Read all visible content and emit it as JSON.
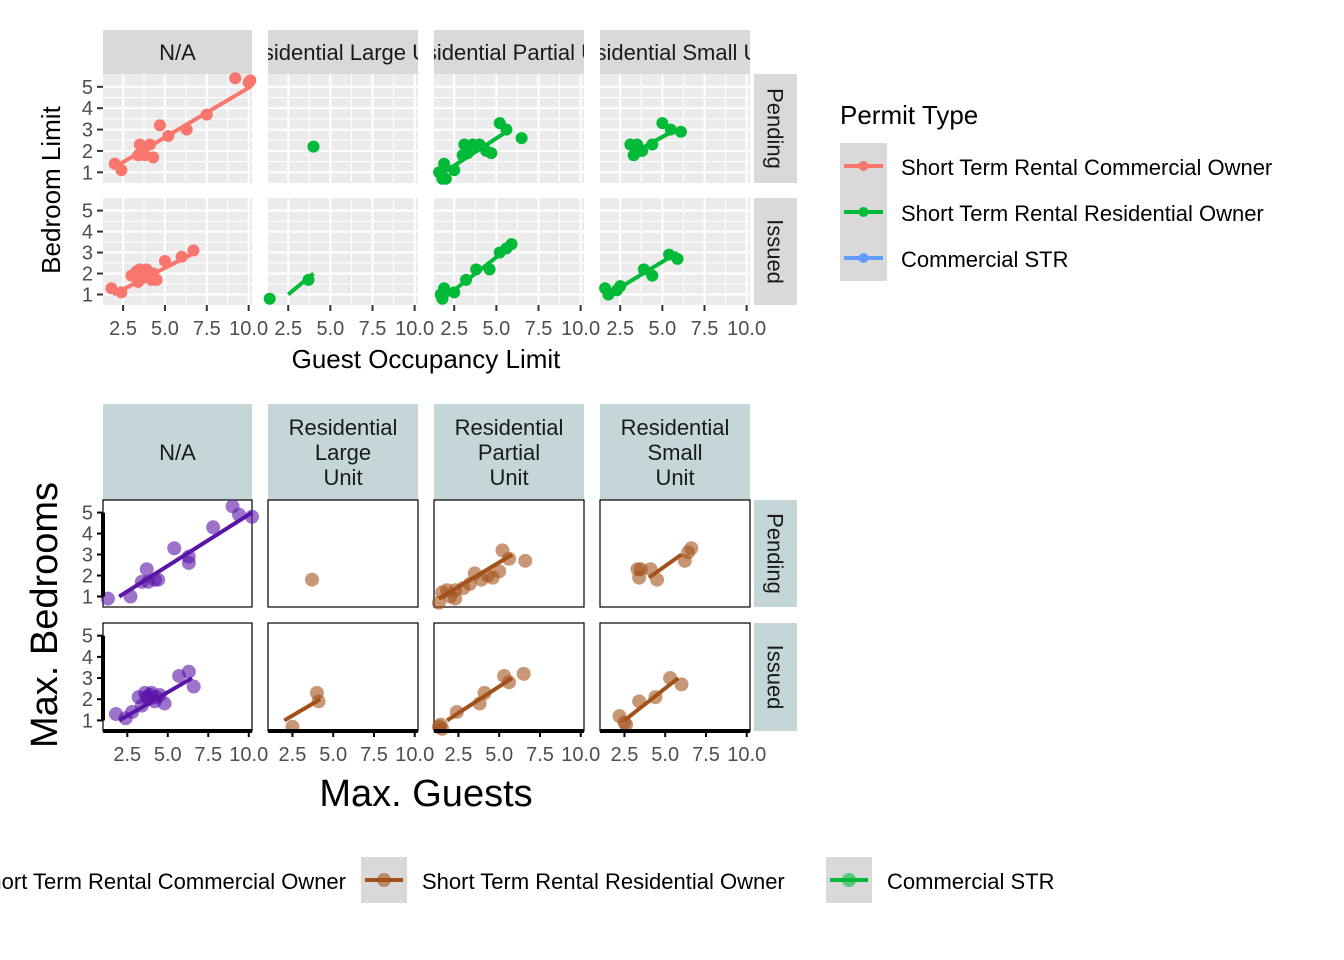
{
  "colors": {
    "commercial_owner": "#F8766D",
    "residential_owner": "#00BA38",
    "commercial_str": "#619CFF",
    "purple": "#5A14A8",
    "brown": "#A3511B",
    "strip_gray": "#D9D9D9",
    "strip_blue": "#C5D6D8",
    "panel_gray": "#EBEBEB"
  },
  "chart_data": [
    {
      "type": "scatter",
      "id": "top",
      "xlabel": "Guest Occupancy Limit",
      "ylabel": "Bedroom Limit",
      "xlim": [
        1.3,
        10.2
      ],
      "ylim": [
        0.5,
        5.6
      ],
      "x_ticks": [
        2.5,
        5.0,
        7.5,
        10.0
      ],
      "x_tick_labels": [
        "2.5",
        "5.0",
        "7.5",
        "10.0"
      ],
      "y_ticks": [
        1,
        2,
        3,
        4,
        5
      ],
      "y_tick_labels": [
        "1",
        "2",
        "3",
        "4",
        "5"
      ],
      "col_facets": [
        "N/A",
        "Residential Large Unit",
        "Residential Partial Unit",
        "Residential Small Unit"
      ],
      "row_facets": [
        "Pending",
        "Issued"
      ],
      "legend": {
        "title": "Permit Type",
        "entries": [
          "Short Term Rental Commercial Owner",
          "Short Term Rental Residential Owner",
          "Commercial STR"
        ]
      },
      "panels": [
        {
          "col": 0,
          "row": 0,
          "color_key": "commercial_owner",
          "points": [
            [
              2.0,
              1.4
            ],
            [
              2.4,
              1.1
            ],
            [
              3.4,
              1.8
            ],
            [
              3.5,
              2.3
            ],
            [
              3.8,
              1.8
            ],
            [
              4.1,
              2.3
            ],
            [
              4.3,
              1.7
            ],
            [
              4.7,
              3.2
            ],
            [
              5.2,
              2.7
            ],
            [
              6.3,
              3.0
            ],
            [
              7.5,
              3.7
            ],
            [
              9.2,
              5.4
            ],
            [
              10.0,
              5.2
            ],
            [
              10.1,
              5.3
            ]
          ],
          "fit": [
            [
              1.9,
              1.2
            ],
            [
              10.1,
              5.0
            ]
          ]
        },
        {
          "col": 1,
          "row": 0,
          "color_key": "residential_owner",
          "points": [
            [
              4.0,
              2.2
            ]
          ],
          "fit": []
        },
        {
          "col": 2,
          "row": 0,
          "color_key": "residential_owner",
          "points": [
            [
              1.6,
              1.0
            ],
            [
              1.8,
              0.7
            ],
            [
              1.9,
              1.4
            ],
            [
              2.0,
              0.7
            ],
            [
              2.5,
              1.1
            ],
            [
              3.0,
              1.8
            ],
            [
              3.1,
              2.3
            ],
            [
              3.3,
              1.9
            ],
            [
              3.6,
              2.3
            ],
            [
              4.0,
              2.3
            ],
            [
              4.4,
              2.0
            ],
            [
              4.7,
              1.9
            ],
            [
              5.2,
              3.3
            ],
            [
              5.6,
              3.0
            ],
            [
              6.5,
              2.6
            ]
          ],
          "fit": [
            [
              1.5,
              0.8
            ],
            [
              5.8,
              3.0
            ]
          ]
        },
        {
          "col": 3,
          "row": 0,
          "color_key": "residential_owner",
          "points": [
            [
              3.1,
              2.3
            ],
            [
              3.3,
              1.8
            ],
            [
              3.5,
              2.3
            ],
            [
              3.8,
              2.0
            ],
            [
              4.4,
              2.3
            ],
            [
              5.0,
              3.3
            ],
            [
              5.5,
              3.0
            ],
            [
              6.1,
              2.9
            ]
          ],
          "fit": [
            [
              3.0,
              1.8
            ],
            [
              5.8,
              3.0
            ]
          ]
        },
        {
          "col": 0,
          "row": 1,
          "color_key": "commercial_owner",
          "points": [
            [
              1.8,
              1.3
            ],
            [
              2.4,
              1.1
            ],
            [
              3.0,
              1.9
            ],
            [
              3.3,
              2.1
            ],
            [
              3.4,
              1.6
            ],
            [
              3.5,
              2.2
            ],
            [
              3.6,
              2.0
            ],
            [
              3.7,
              1.8
            ],
            [
              3.8,
              2.1
            ],
            [
              3.9,
              2.2
            ],
            [
              4.1,
              1.9
            ],
            [
              4.2,
              1.7
            ],
            [
              4.3,
              2.0
            ],
            [
              4.5,
              1.7
            ],
            [
              5.0,
              2.6
            ],
            [
              6.0,
              2.8
            ],
            [
              6.7,
              3.1
            ]
          ],
          "fit": [
            [
              1.9,
              1.0
            ],
            [
              6.8,
              3.0
            ]
          ]
        },
        {
          "col": 1,
          "row": 1,
          "color_key": "residential_owner",
          "points": [
            [
              1.4,
              0.8
            ],
            [
              3.7,
              1.7
            ]
          ],
          "fit": [
            [
              2.5,
              1.0
            ],
            [
              4.0,
              2.0
            ]
          ]
        },
        {
          "col": 2,
          "row": 1,
          "color_key": "residential_owner",
          "points": [
            [
              1.7,
              1.0
            ],
            [
              1.8,
              0.8
            ],
            [
              1.9,
              1.3
            ],
            [
              2.5,
              1.1
            ],
            [
              3.2,
              1.7
            ],
            [
              3.8,
              2.2
            ],
            [
              4.6,
              2.2
            ],
            [
              5.2,
              3.0
            ],
            [
              5.6,
              3.2
            ],
            [
              5.9,
              3.4
            ]
          ],
          "fit": [
            [
              2.0,
              0.9
            ],
            [
              6.0,
              3.4
            ]
          ]
        },
        {
          "col": 3,
          "row": 1,
          "color_key": "residential_owner",
          "points": [
            [
              1.6,
              1.3
            ],
            [
              1.8,
              1.0
            ],
            [
              2.3,
              1.2
            ],
            [
              2.5,
              1.4
            ],
            [
              3.9,
              2.2
            ],
            [
              4.4,
              1.9
            ],
            [
              5.4,
              2.9
            ],
            [
              5.9,
              2.7
            ]
          ],
          "fit": [
            [
              1.6,
              0.9
            ],
            [
              5.9,
              3.0
            ]
          ]
        }
      ]
    },
    {
      "type": "scatter",
      "id": "bottom",
      "xlabel": "Max. Guests",
      "ylabel": "Max. Bedrooms",
      "xlim": [
        1.0,
        10.2
      ],
      "ylim": [
        0.5,
        5.6
      ],
      "x_ticks": [
        2.5,
        5.0,
        7.5,
        10.0
      ],
      "x_tick_labels": [
        "2.5",
        "5.0",
        "7.5",
        "10.0"
      ],
      "y_ticks": [
        1,
        2,
        3,
        4,
        5
      ],
      "y_tick_labels": [
        "1",
        "2",
        "3",
        "4",
        "5"
      ],
      "col_facets": [
        "N/A",
        "Residential\nLarge\nUnit",
        "Residential\nPartial\nUnit",
        "Residential\nSmall\nUnit"
      ],
      "row_facets": [
        "Pending",
        "Issued"
      ],
      "legend": {
        "entries": [
          "Short Term Rental Commercial Owner",
          "Short Term Rental Residential Owner",
          "Commercial STR"
        ]
      },
      "panels": [
        {
          "col": 0,
          "row": 0,
          "color_key": "purple",
          "points": [
            [
              1.3,
              0.9
            ],
            [
              2.7,
              1.0
            ],
            [
              3.4,
              1.7
            ],
            [
              3.7,
              2.3
            ],
            [
              3.8,
              1.7
            ],
            [
              4.2,
              1.8
            ],
            [
              4.4,
              1.8
            ],
            [
              5.4,
              3.3
            ],
            [
              6.3,
              2.6
            ],
            [
              6.3,
              2.9
            ],
            [
              7.8,
              4.3
            ],
            [
              9.0,
              5.3
            ],
            [
              9.4,
              4.9
            ],
            [
              10.2,
              4.8
            ]
          ],
          "fit": [
            [
              2.0,
              1.0
            ],
            [
              10.2,
              5.0
            ]
          ]
        },
        {
          "col": 1,
          "row": 0,
          "color_key": "brown",
          "points": [
            [
              3.7,
              1.8
            ]
          ],
          "fit": []
        },
        {
          "col": 2,
          "row": 0,
          "color_key": "brown",
          "points": [
            [
              1.3,
              0.7
            ],
            [
              1.5,
              1.2
            ],
            [
              1.8,
              1.3
            ],
            [
              2.0,
              1.0
            ],
            [
              2.3,
              1.3
            ],
            [
              2.3,
              0.9
            ],
            [
              2.8,
              1.4
            ],
            [
              3.2,
              1.6
            ],
            [
              3.5,
              2.1
            ],
            [
              3.9,
              1.8
            ],
            [
              4.3,
              2.0
            ],
            [
              4.6,
              1.9
            ],
            [
              5.0,
              2.2
            ],
            [
              5.2,
              3.2
            ],
            [
              5.6,
              2.8
            ],
            [
              6.6,
              2.7
            ]
          ],
          "fit": [
            [
              1.3,
              0.9
            ],
            [
              5.8,
              3.0
            ]
          ]
        },
        {
          "col": 3,
          "row": 0,
          "color_key": "brown",
          "points": [
            [
              3.3,
              2.3
            ],
            [
              3.4,
              1.9
            ],
            [
              3.5,
              2.3
            ],
            [
              4.1,
              2.3
            ],
            [
              4.5,
              1.8
            ],
            [
              6.2,
              2.7
            ],
            [
              6.4,
              3.1
            ],
            [
              6.6,
              3.3
            ]
          ],
          "fit": [
            [
              4.0,
              1.9
            ],
            [
              6.0,
              3.0
            ]
          ]
        },
        {
          "col": 0,
          "row": 1,
          "color_key": "purple",
          "points": [
            [
              1.8,
              1.3
            ],
            [
              2.4,
              1.1
            ],
            [
              2.8,
              1.4
            ],
            [
              3.2,
              2.1
            ],
            [
              3.4,
              1.7
            ],
            [
              3.6,
              2.3
            ],
            [
              3.7,
              2.1
            ],
            [
              3.8,
              2.0
            ],
            [
              3.9,
              2.2
            ],
            [
              4.0,
              2.3
            ],
            [
              4.2,
              1.9
            ],
            [
              4.3,
              2.1
            ],
            [
              4.5,
              2.2
            ],
            [
              4.8,
              1.8
            ],
            [
              5.7,
              3.1
            ],
            [
              6.3,
              3.3
            ],
            [
              6.6,
              2.6
            ]
          ],
          "fit": [
            [
              2.0,
              1.0
            ],
            [
              6.5,
              3.0
            ]
          ]
        },
        {
          "col": 1,
          "row": 1,
          "color_key": "brown",
          "points": [
            [
              2.5,
              0.7
            ],
            [
              4.0,
              2.3
            ],
            [
              4.1,
              1.9
            ]
          ],
          "fit": [
            [
              2.0,
              1.0
            ],
            [
              4.2,
              2.0
            ]
          ]
        },
        {
          "col": 2,
          "row": 1,
          "color_key": "brown",
          "points": [
            [
              1.3,
              0.7
            ],
            [
              1.4,
              0.8
            ],
            [
              1.5,
              0.6
            ],
            [
              2.4,
              1.4
            ],
            [
              3.8,
              1.8
            ],
            [
              4.1,
              2.3
            ],
            [
              5.3,
              3.1
            ],
            [
              5.6,
              2.8
            ],
            [
              6.5,
              3.2
            ]
          ],
          "fit": [
            [
              1.8,
              1.0
            ],
            [
              5.8,
              3.0
            ]
          ]
        },
        {
          "col": 3,
          "row": 1,
          "color_key": "brown",
          "points": [
            [
              2.2,
              1.2
            ],
            [
              2.5,
              0.9
            ],
            [
              2.6,
              0.8
            ],
            [
              3.4,
              1.9
            ],
            [
              4.4,
              2.1
            ],
            [
              5.3,
              3.0
            ],
            [
              6.0,
              2.7
            ]
          ],
          "fit": [
            [
              2.5,
              1.0
            ],
            [
              5.8,
              3.0
            ]
          ]
        }
      ]
    }
  ]
}
